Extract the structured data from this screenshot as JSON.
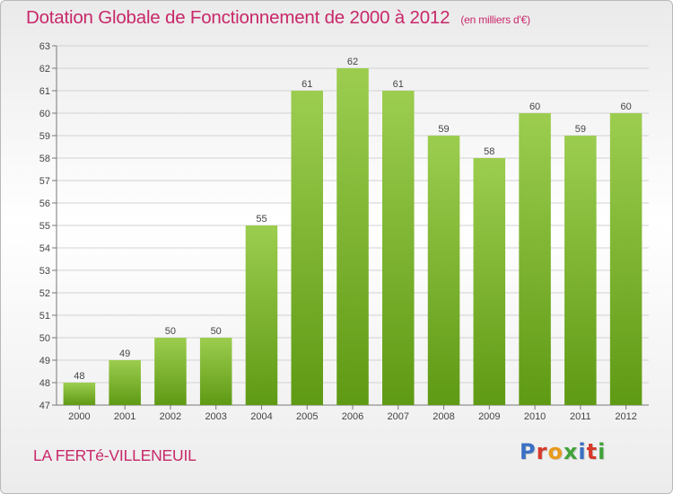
{
  "title": "Dotation Globale de Fonctionnement de 2000 à 2012",
  "subtitle": "(en milliers d'€)",
  "commune": "LA FERTé-VILLENEUIL",
  "logo_text": "Proxiti",
  "logo_colors": [
    "#3a6fc4",
    "#d63a2a",
    "#e89a1c",
    "#42a23a",
    "#3a6fc4",
    "#d63a2a",
    "#42a23a"
  ],
  "colors": {
    "accent": "#c8286a",
    "bar_top": "#9ccd4f",
    "bar_bottom": "#5f9a14"
  },
  "chart_data": {
    "type": "bar",
    "categories": [
      "2000",
      "2001",
      "2002",
      "2003",
      "2004",
      "2005",
      "2006",
      "2007",
      "2008",
      "2009",
      "2010",
      "2011",
      "2012"
    ],
    "values": [
      48,
      49,
      50,
      50,
      55,
      61,
      62,
      61,
      59,
      58,
      60,
      59,
      60
    ],
    "ylim": [
      47,
      63
    ],
    "yticks": [
      47,
      48,
      49,
      50,
      51,
      52,
      53,
      54,
      55,
      56,
      57,
      58,
      59,
      60,
      61,
      62,
      63
    ],
    "grid": true
  }
}
